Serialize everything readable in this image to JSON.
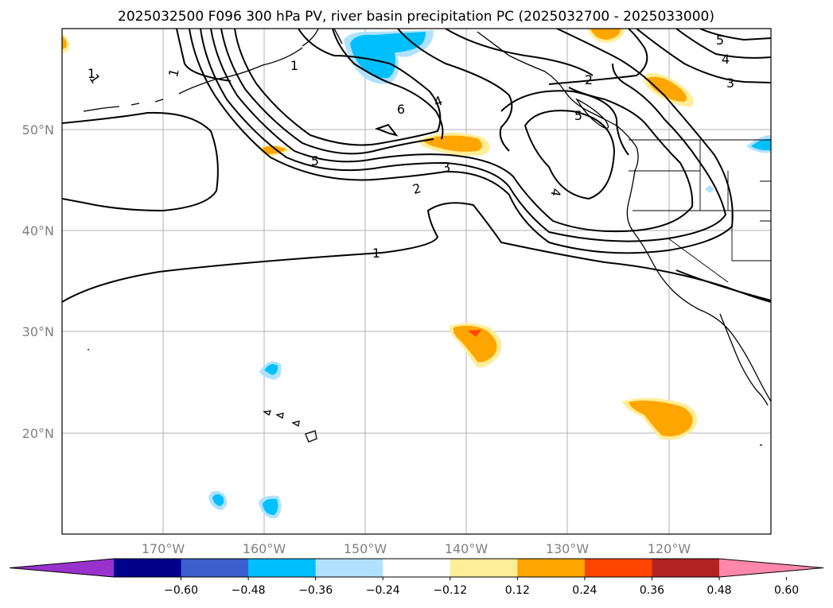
{
  "title": "2025032500 F096 300 hPa PV, river basin precipitation PC (2025032700 - 2025033000)",
  "lat_labels": [
    "50°N",
    "40°N",
    "30°N",
    "20°N"
  ],
  "lon_labels": [
    "170°W",
    "160°W",
    "150°W",
    "140°W",
    "130°W",
    "120°W"
  ],
  "contour_labels": [
    "1",
    "1",
    "1",
    "5",
    "6",
    "4",
    "2",
    "5",
    "2",
    "3",
    "3",
    "4",
    "5",
    "4",
    "1",
    "1"
  ],
  "colorbar": {
    "ticks": [
      "−0.60",
      "−0.48",
      "−0.36",
      "−0.24",
      "−0.12",
      "0.12",
      "0.24",
      "0.36",
      "0.48",
      "0.60"
    ],
    "colors": [
      "#9932cc",
      "#00008b",
      "#3a5fcd",
      "#00bfff",
      "#b0e2ff",
      "#ffffff",
      "#ffee99",
      "#ffa500",
      "#ff4500",
      "#b22222",
      "#ff88aa"
    ]
  },
  "chart_data": {
    "type": "map",
    "region": "North-east Pacific",
    "field": "300 hPa PV contours with precipitation PC shading",
    "pv_contour_levels": [
      1,
      2,
      3,
      4,
      5,
      6
    ],
    "lon_range": [
      -180,
      -110
    ],
    "lat_range": [
      10,
      60
    ],
    "shading_bins": [
      -0.6,
      -0.48,
      -0.36,
      -0.24,
      -0.12,
      0.12,
      0.24,
      0.36,
      0.48,
      0.6
    ]
  }
}
